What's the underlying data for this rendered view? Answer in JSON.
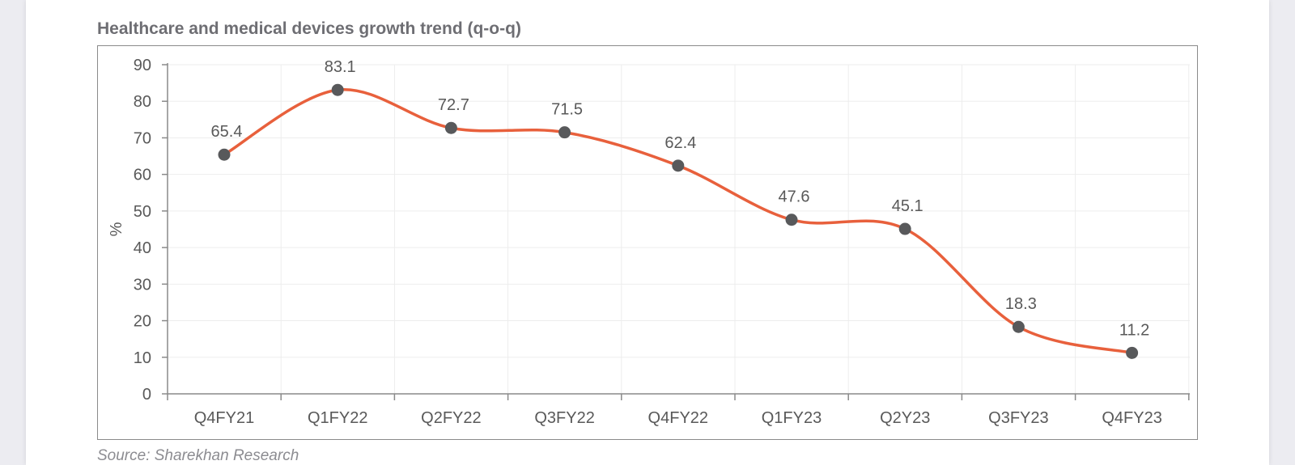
{
  "page": {
    "title": "Healthcare and medical devices growth trend (q-o-q)",
    "source": "Source: Sharekhan Research"
  },
  "colors": {
    "line": "#E8603C",
    "marker": "#58595b",
    "axis": "#8a8a8a",
    "grid": "#ededed",
    "text": "#595959"
  },
  "chart_data": {
    "type": "line",
    "title": "Healthcare and medical devices growth trend (q-o-q)",
    "xlabel": "",
    "ylabel": "%",
    "ylim": [
      0,
      90
    ],
    "yticks": [
      0,
      10,
      20,
      30,
      40,
      50,
      60,
      70,
      80,
      90
    ],
    "grid": true,
    "categories": [
      "Q4FY21",
      "Q1FY22",
      "Q2FY22",
      "Q3FY22",
      "Q4FY22",
      "Q1FY23",
      "Q2Y23",
      "Q3FY23",
      "Q4FY23"
    ],
    "series": [
      {
        "name": "Growth (q-o-q)",
        "values": [
          65.4,
          83.1,
          72.7,
          71.5,
          62.4,
          47.6,
          45.1,
          18.3,
          11.2
        ],
        "labels": [
          "65.4",
          "83.1",
          "72.7",
          "71.5",
          "62.4",
          "47.6",
          "45.1",
          "18.3",
          "11.2"
        ]
      }
    ]
  }
}
